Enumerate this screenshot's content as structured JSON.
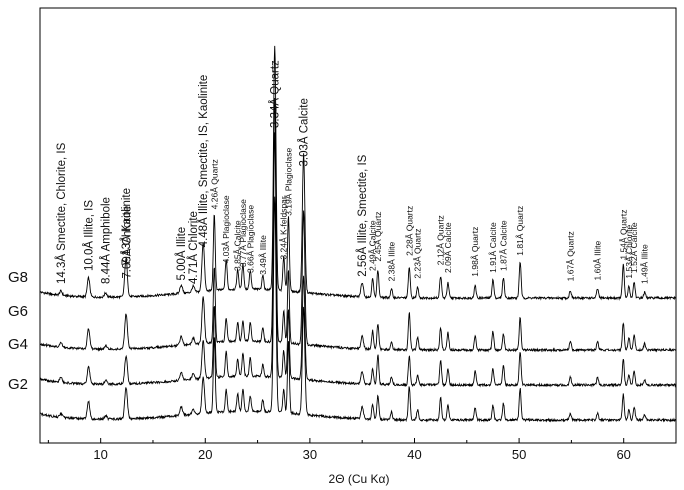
{
  "chart_data": {
    "type": "line",
    "title": "",
    "xlabel": "2Θ (Cu Kα)",
    "ylabel": "",
    "xlim": [
      4.2,
      65
    ],
    "xticks": [
      10,
      20,
      30,
      40,
      50,
      60
    ],
    "grid": false,
    "series": [
      {
        "name": "G8",
        "label": "G8"
      },
      {
        "name": "G6",
        "label": "G6"
      },
      {
        "name": "G4",
        "label": "G4"
      },
      {
        "name": "G2",
        "label": "G2"
      }
    ],
    "peaks": [
      {
        "x": 6.2,
        "size": "big",
        "label": "14.3Å Smectite, Chlorite, IS"
      },
      {
        "x": 8.84,
        "size": "big",
        "label": "10.0Å Illite, IS"
      },
      {
        "x": 10.48,
        "size": "big",
        "label": "8.44Å Amphibole"
      },
      {
        "x": 12.4,
        "size": "big",
        "label": "7.13Å Kaolinite"
      },
      {
        "x": 12.48,
        "size": "big",
        "label": "7.09Å Chlorite"
      },
      {
        "x": 17.7,
        "size": "big",
        "label": "5.00Å Illite"
      },
      {
        "x": 18.85,
        "size": "big",
        "label": "4.71Å Chlorite"
      },
      {
        "x": 19.8,
        "size": "big",
        "label": "4.48Å Illite, Smectite, IS, Kaolinite"
      },
      {
        "x": 20.86,
        "size": "small",
        "label": "4.26Å Quartz"
      },
      {
        "x": 22.0,
        "size": "small",
        "label": "4.03Å Plagioclase"
      },
      {
        "x": 23.1,
        "size": "small",
        "label": "3.85Å Calcite"
      },
      {
        "x": 23.6,
        "size": "small",
        "label": "3.77Å Plagioclase"
      },
      {
        "x": 24.3,
        "size": "small",
        "label": "3.66Å Plagioclase"
      },
      {
        "x": 25.5,
        "size": "small",
        "label": "3.49Å Illite"
      },
      {
        "x": 26.64,
        "size": "big",
        "label": "3.34Å Quartz"
      },
      {
        "x": 27.5,
        "size": "small",
        "label": "3.24Å K-feldspar"
      },
      {
        "x": 27.95,
        "size": "small",
        "label": "3.19Å Plagioclase"
      },
      {
        "x": 29.4,
        "size": "big",
        "label": "3.03Å Calcite"
      },
      {
        "x": 35.0,
        "size": "big",
        "label": "2.56Å Illite, Smectite, IS"
      },
      {
        "x": 36.0,
        "size": "small",
        "label": "2.49Å Calcite"
      },
      {
        "x": 36.5,
        "size": "small",
        "label": "2.45Å Quartz"
      },
      {
        "x": 37.8,
        "size": "small",
        "label": "2.38Å Illite"
      },
      {
        "x": 39.5,
        "size": "small",
        "label": "2.28Å Quartz"
      },
      {
        "x": 40.3,
        "size": "small",
        "label": "2.23Å Quartz"
      },
      {
        "x": 42.5,
        "size": "small",
        "label": "2.12Å Quartz"
      },
      {
        "x": 43.2,
        "size": "small",
        "label": "2.09Å Calcite"
      },
      {
        "x": 45.8,
        "size": "small",
        "label": "1.98Å Quartz"
      },
      {
        "x": 47.5,
        "size": "small",
        "label": "1.91Å Calcite"
      },
      {
        "x": 48.5,
        "size": "small",
        "label": "1.87Å Calcite"
      },
      {
        "x": 50.1,
        "size": "small",
        "label": "1.81Å Quartz"
      },
      {
        "x": 54.9,
        "size": "small",
        "label": "1.67Å Quartz"
      },
      {
        "x": 57.5,
        "size": "small",
        "label": "1.60Å Illite"
      },
      {
        "x": 59.96,
        "size": "small",
        "label": "1.54Å Quartz"
      },
      {
        "x": 60.5,
        "size": "small",
        "label": "1.53Å Chlorite"
      },
      {
        "x": 61.0,
        "size": "small",
        "label": "1.52Å Calcite"
      },
      {
        "x": 62.0,
        "size": "small",
        "label": "1.49Å Illite"
      }
    ]
  }
}
